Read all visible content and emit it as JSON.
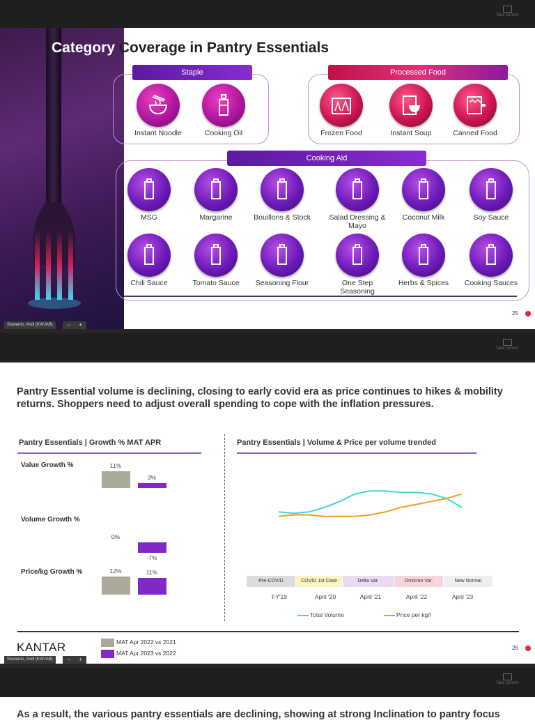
{
  "viewer": {
    "take_control": "Take control"
  },
  "slide1": {
    "title_a": "Category",
    "title_b": " Coverage in Pantry Essentials",
    "groups": {
      "staple": "Staple",
      "processed": "Processed Food",
      "cooking_aid": "Cooking Aid"
    },
    "staple_items": [
      "Instant Noodle",
      "Cooking Oil"
    ],
    "processed_items": [
      "Frozen Food",
      "Instant Soup",
      "Canned Food"
    ],
    "aid_row1": [
      "MSG",
      "Margarine",
      "Bouillons & Stock",
      "Salad Dressing & Mayo",
      "Coconut Milk",
      "Soy Sauce"
    ],
    "aid_row2": [
      "Chili Sauce",
      "Tomato Sauce",
      "Seasoning Flour",
      "One Step Seasoning",
      "Herbs & Spices",
      "Cooking Sauces"
    ],
    "page": "25",
    "presenter": "Siswanto, Andi (KWJAB)"
  },
  "slide2": {
    "title": "Pantry Essential volume is declining, closing to early covid era as price continues to hikes & mobility returns. Shoppers need to adjust overall spending to cope with the inflation pressures.",
    "left_header": "Pantry Essentials | Growth % MAT APR",
    "right_header": "Pantry Essentials | Volume & Price per volume trended",
    "metrics": [
      {
        "name": "Value Growth %",
        "a": "11%",
        "b": "3%"
      },
      {
        "name": "Volume Growth %",
        "a": "0%",
        "b": "-7%"
      },
      {
        "name": "Price/kg Growth %",
        "a": "12%",
        "b": "11%"
      }
    ],
    "eras": [
      "Pre-COVID",
      "COVID 1st Case",
      "Delta Var.",
      "Omicron Var.",
      "New Normal"
    ],
    "x_ticks": [
      "FY'19",
      "April '20",
      "April '21",
      "April '22",
      "April '23"
    ],
    "legend": {
      "volume": "Total Volume",
      "price": "Price per kg/l"
    },
    "bar_legend": [
      "MAT Apr 2022 vs 2021",
      "MAT Apr 2023 vs 2022"
    ],
    "logo": "KANTAR",
    "page": "26",
    "presenter": "Siswanto, Andi (KWJAB)"
  },
  "slide3": {
    "title_partial": "As a result, the various pantry essentials are declining, showing at strong Inclination to pantry focus"
  },
  "colors": {
    "volume_line": "#3fd6d6",
    "price_line": "#f0a020",
    "bar_prev": "#aba99a",
    "bar_curr": "#8228c7",
    "accent": "#8e5fc4"
  },
  "chart_data": [
    {
      "type": "bar",
      "title": "Pantry Essentials | Growth % MAT APR",
      "categories": [
        "Value Growth %",
        "Volume Growth %",
        "Price/kg Growth %"
      ],
      "series": [
        {
          "name": "MAT Apr 2022 vs 2021",
          "values": [
            11,
            0,
            12
          ]
        },
        {
          "name": "MAT Apr 2023 vs 2022",
          "values": [
            3,
            -7,
            11
          ]
        }
      ]
    },
    {
      "type": "line",
      "title": "Pantry Essentials | Volume & Price per volume trended",
      "x": [
        "FY'19",
        "",
        "",
        "April '20",
        "",
        "",
        "April '21",
        "",
        "",
        "April '22",
        "",
        "",
        "April '23"
      ],
      "series": [
        {
          "name": "Total Volume",
          "values": [
            100,
            99,
            100,
            103,
            107,
            112,
            114,
            114,
            113,
            113,
            112,
            109,
            103
          ]
        },
        {
          "name": "Price per kg/l",
          "values": [
            97,
            98,
            98,
            97,
            97,
            97,
            98,
            100,
            103,
            105,
            107,
            109,
            112
          ]
        }
      ],
      "ylim": [
        90,
        120
      ],
      "grid": false,
      "legend": "bottom"
    }
  ]
}
